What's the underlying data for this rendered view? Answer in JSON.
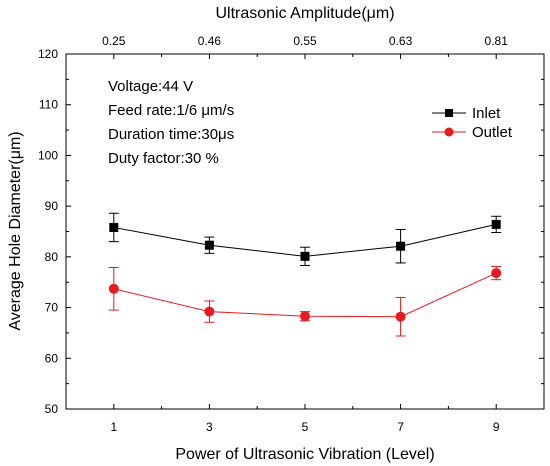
{
  "chart_data": {
    "type": "line",
    "x": [
      1,
      3,
      5,
      7,
      9
    ],
    "xlabel": "Power of Ultrasonic Vibration (Level)",
    "ylabel": "Average Hole Diameter(μm)",
    "xlim": [
      0,
      10
    ],
    "ylim": [
      50,
      120
    ],
    "x_ticks": [
      "1",
      "3",
      "5",
      "7",
      "9"
    ],
    "y_ticks": [
      "50",
      "60",
      "70",
      "80",
      "90",
      "100",
      "110",
      "120"
    ],
    "top_axis": {
      "label": "Ultrasonic Amplitude(μm)",
      "ticks": [
        "0.25",
        "0.46",
        "0.55",
        "0.63",
        "0.81"
      ]
    },
    "annotations": [
      "Voltage:44 V",
      "Feed rate:1/6 μm/s",
      "Duration time:30μs",
      "Duty factor:30 %"
    ],
    "legend_position": "top-right",
    "grid": false,
    "series": [
      {
        "name": "Inlet",
        "color": "#000000",
        "marker": "square",
        "values": [
          85.8,
          82.3,
          80.1,
          82.1,
          86.4
        ],
        "error": [
          2.8,
          1.6,
          1.8,
          3.3,
          1.6
        ]
      },
      {
        "name": "Outlet",
        "color": "#e8191f",
        "marker": "circle",
        "values": [
          73.7,
          69.2,
          68.3,
          68.2,
          76.8
        ],
        "error": [
          4.2,
          2.1,
          0.9,
          3.8,
          1.3
        ]
      }
    ]
  }
}
